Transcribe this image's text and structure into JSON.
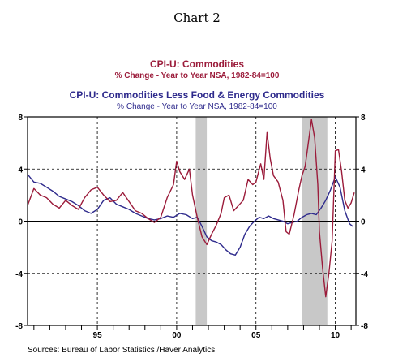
{
  "page_title": "Chart 2",
  "source": "Sources:  Bureau of Labor Statistics /Haver Analytics",
  "chart_data": {
    "type": "line",
    "x_range": [
      1990.6,
      2011.3
    ],
    "ylim": [
      -8,
      8
    ],
    "y_ticks": [
      8,
      4,
      0,
      -4,
      -8
    ],
    "y_tick_labels": [
      "8",
      "4",
      "0",
      "-4",
      "-8"
    ],
    "x_ticks": [
      1995,
      2000,
      2005,
      2010
    ],
    "x_tick_labels": [
      "95",
      "00",
      "05",
      "10"
    ],
    "grid": true,
    "recession_bands": [
      [
        2001.2,
        2001.9
      ],
      [
        2007.9,
        2009.5
      ]
    ],
    "legend": [
      {
        "title": "CPI-U: Commodities",
        "subtitle": "% Change - Year to Year    NSA, 1982-84=100",
        "color": "#9b1b3a"
      },
      {
        "title": "CPI-U: Commodities Less Food & Energy Commodities",
        "subtitle": "% Change - Year to Year    NSA, 1982-84=100",
        "color": "#2e2a8c"
      }
    ],
    "series": [
      {
        "name": "CPI-U: Commodities",
        "color": "#9b1b3a",
        "x": [
          1990.6,
          1991.0,
          1991.4,
          1991.8,
          1992.2,
          1992.6,
          1993.0,
          1993.4,
          1993.8,
          1994.2,
          1994.6,
          1995.0,
          1995.4,
          1995.8,
          1996.2,
          1996.6,
          1997.0,
          1997.4,
          1997.8,
          1998.2,
          1998.6,
          1999.0,
          1999.4,
          1999.8,
          2000.0,
          2000.2,
          2000.5,
          2000.8,
          2001.0,
          2001.3,
          2001.6,
          2001.9,
          2002.2,
          2002.5,
          2002.8,
          2003.0,
          2003.3,
          2003.6,
          2003.9,
          2004.2,
          2004.5,
          2004.8,
          2005.0,
          2005.3,
          2005.5,
          2005.7,
          2005.9,
          2006.1,
          2006.4,
          2006.7,
          2006.9,
          2007.1,
          2007.4,
          2007.7,
          2007.9,
          2008.1,
          2008.3,
          2008.5,
          2008.7,
          2008.9,
          2009.0,
          2009.2,
          2009.4,
          2009.6,
          2009.8,
          2010.0,
          2010.2,
          2010.4,
          2010.6,
          2010.8,
          2011.0,
          2011.2
        ],
        "y": [
          1.2,
          2.5,
          2.0,
          1.8,
          1.3,
          1.0,
          1.6,
          1.2,
          0.9,
          1.8,
          2.4,
          2.6,
          2.0,
          1.5,
          1.6,
          2.2,
          1.5,
          0.8,
          0.6,
          0.2,
          -0.1,
          0.3,
          1.8,
          2.8,
          4.6,
          3.8,
          3.2,
          4.0,
          2.0,
          0.3,
          -1.2,
          -1.8,
          -1.0,
          -0.3,
          0.6,
          1.8,
          2.0,
          0.8,
          1.2,
          1.6,
          3.2,
          2.8,
          3.0,
          4.4,
          3.2,
          6.8,
          4.8,
          3.5,
          3.0,
          1.6,
          -0.8,
          -1.0,
          0.5,
          2.4,
          3.5,
          4.2,
          6.0,
          7.8,
          6.4,
          2.8,
          -0.8,
          -3.6,
          -5.8,
          -4.0,
          -1.5,
          5.4,
          5.5,
          3.8,
          1.6,
          1.0,
          1.4,
          2.2
        ]
      },
      {
        "name": "CPI-U: Commodities Less Food & Energy Commodities",
        "color": "#2e2a8c",
        "x": [
          1990.6,
          1991.0,
          1991.4,
          1991.8,
          1992.2,
          1992.6,
          1993.0,
          1993.4,
          1993.8,
          1994.2,
          1994.6,
          1995.0,
          1995.4,
          1995.8,
          1996.2,
          1996.6,
          1997.0,
          1997.4,
          1997.8,
          1998.2,
          1998.6,
          1999.0,
          1999.4,
          1999.8,
          2000.2,
          2000.6,
          2001.0,
          2001.3,
          2001.6,
          2001.9,
          2002.2,
          2002.5,
          2002.8,
          2003.1,
          2003.4,
          2003.7,
          2004.0,
          2004.3,
          2004.6,
          2004.9,
          2005.2,
          2005.5,
          2005.8,
          2006.1,
          2006.4,
          2006.7,
          2007.0,
          2007.3,
          2007.6,
          2007.9,
          2008.2,
          2008.5,
          2008.8,
          2009.1,
          2009.4,
          2009.7,
          2010.0,
          2010.3,
          2010.6,
          2010.9,
          2011.1
        ],
        "y": [
          3.6,
          3.0,
          2.9,
          2.6,
          2.3,
          1.9,
          1.7,
          1.5,
          1.2,
          0.8,
          0.6,
          0.9,
          1.6,
          1.8,
          1.3,
          1.1,
          0.9,
          0.6,
          0.4,
          0.2,
          0.1,
          0.2,
          0.4,
          0.3,
          0.6,
          0.5,
          0.2,
          0.3,
          -0.4,
          -1.2,
          -1.5,
          -1.6,
          -1.8,
          -2.2,
          -2.5,
          -2.6,
          -2.0,
          -1.0,
          -0.4,
          0.0,
          0.3,
          0.2,
          0.4,
          0.2,
          0.1,
          0.0,
          -0.2,
          -0.1,
          0.0,
          0.3,
          0.5,
          0.6,
          0.5,
          1.0,
          1.6,
          2.4,
          3.4,
          2.6,
          0.8,
          -0.2,
          -0.4
        ]
      }
    ]
  }
}
